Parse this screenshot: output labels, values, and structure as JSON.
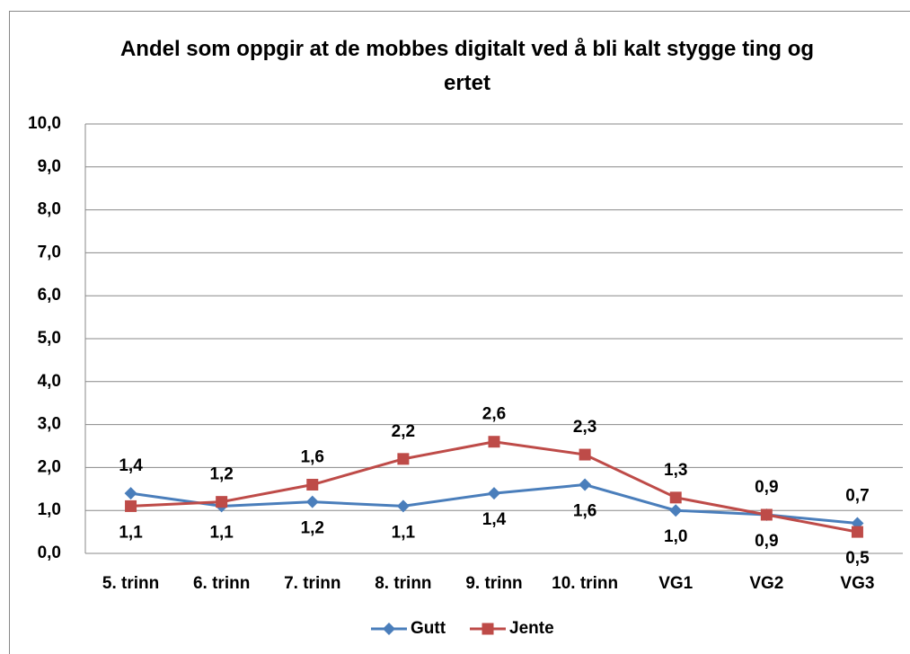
{
  "chart_data": {
    "type": "line",
    "title": "Andel som oppgir at de mobbes digitalt ved å bli kalt stygge ting og ertet",
    "categories": [
      "5. trinn",
      "6. trinn",
      "7. trinn",
      "8. trinn",
      "9. trinn",
      "10. trinn",
      "VG1",
      "VG2",
      "VG3"
    ],
    "series": [
      {
        "name": "Gutt",
        "color": "#4a7ebb",
        "marker": "diamond",
        "values": [
          1.4,
          1.1,
          1.2,
          1.1,
          1.4,
          1.6,
          1.0,
          0.9,
          0.7
        ],
        "value_labels": [
          "1,4",
          "1,1",
          "1,2",
          "1,1",
          "1,4",
          "1,6",
          "1,0",
          "0,9",
          "0,7"
        ]
      },
      {
        "name": "Jente",
        "color": "#be4b48",
        "marker": "square",
        "values": [
          1.1,
          1.2,
          1.6,
          2.2,
          2.6,
          2.3,
          1.3,
          0.9,
          0.5
        ],
        "value_labels": [
          "1,1",
          "1,2",
          "1,6",
          "2,2",
          "2,6",
          "2,3",
          "1,3",
          "0,9",
          "0,5"
        ]
      }
    ],
    "ylim": [
      0,
      10
    ],
    "yticks": [
      {
        "value": 0,
        "label": "0,0"
      },
      {
        "value": 1,
        "label": "1,0"
      },
      {
        "value": 2,
        "label": "2,0"
      },
      {
        "value": 3,
        "label": "3,0"
      },
      {
        "value": 4,
        "label": "4,0"
      },
      {
        "value": 5,
        "label": "5,0"
      },
      {
        "value": 6,
        "label": "6,0"
      },
      {
        "value": 7,
        "label": "7,0"
      },
      {
        "value": 8,
        "label": "8,0"
      },
      {
        "value": 9,
        "label": "9,0"
      },
      {
        "value": 10,
        "label": "10,0"
      }
    ],
    "grid": true,
    "legend": "bottom"
  }
}
